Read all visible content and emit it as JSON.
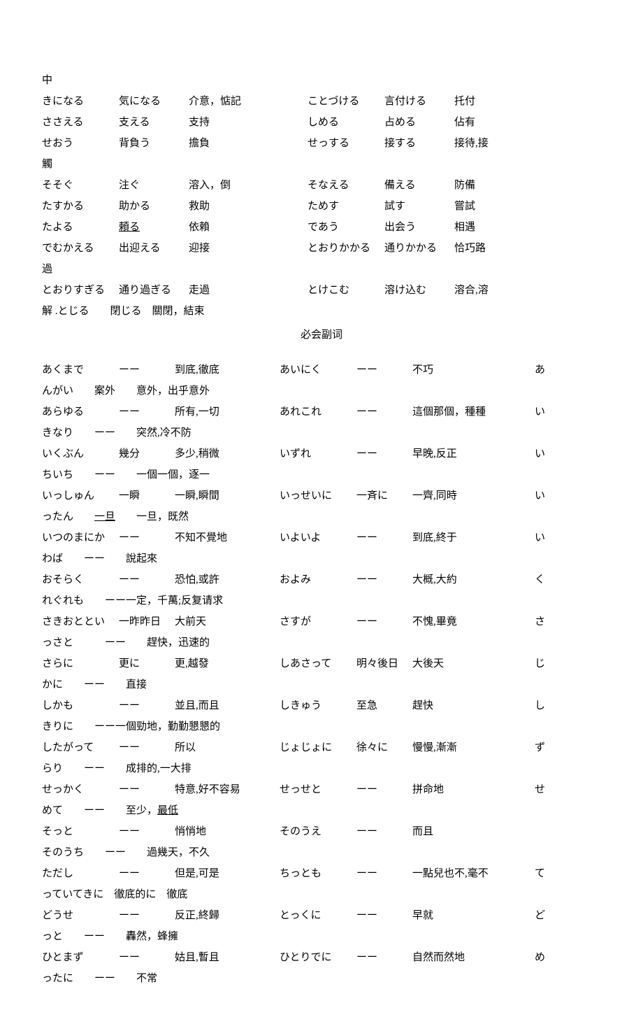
{
  "font_family": "SimSun / MS Mincho serif",
  "font_size_pt": 11,
  "text_color": "#000000",
  "background_color": "#ffffff",
  "line_height": 2.0,
  "verbs_orphan_top": "中",
  "verbs": [
    {
      "k": "きになる",
      "j": "気になる",
      "m": "介意，惦記",
      "k2": "ことづける",
      "j2": "言付ける",
      "m2": "托付"
    },
    {
      "k": "ささえる",
      "j": "支える",
      "m": "支持",
      "k2": "しめる",
      "j2": "占める",
      "m2": "佔有"
    },
    {
      "k": "せおう",
      "j": "背負う",
      "m": "擔負",
      "k2": "せっする",
      "j2": "接する",
      "m2": "接待,接"
    },
    {
      "cont": "觸"
    },
    {
      "k": "そそぐ",
      "j": "注ぐ",
      "m": "溶入，倒",
      "k2": "そなえる",
      "j2": "備える",
      "m2": "防備"
    },
    {
      "k": "たすかる",
      "j": "助かる",
      "m": "救助",
      "k2": "ためす",
      "j2": "試す",
      "m2": "嘗試"
    },
    {
      "k": "たよる",
      "j": "頼る",
      "m": "依賴",
      "j_under": true,
      "k2": "であう",
      "j2": "出会う",
      "m2": "相遇"
    },
    {
      "k": "でむかえる",
      "j": "出迎える",
      "m": "迎接",
      "k2": "とおりかかる",
      "j2": "通りかかる",
      "m2": "恰巧路"
    },
    {
      "cont": "過"
    },
    {
      "k": "とおりすぎる",
      "j": "通り過ぎる",
      "m": "走過",
      "k2": "とけこむ",
      "j2": "溶け込む",
      "m2": "溶合,溶"
    },
    {
      "cont": "解 .とじる　　閉じる　關閉，結束"
    }
  ],
  "section_title": "必会副词",
  "adverbs": [
    {
      "k": "あくまで",
      "d": "ーー",
      "m": "到底,徹底",
      "k2": "あいにく",
      "d2": "ーー",
      "m2": "不巧",
      "tail": "あ"
    },
    {
      "cont": "んがい　　案外　　意外，出乎意外"
    },
    {
      "k": "あらゆる",
      "d": "ーー",
      "m": "所有,一切",
      "k2": "あれこれ",
      "d2": "ーー",
      "m2": "這個那個，種種",
      "tail": "い"
    },
    {
      "cont": "きなり　　ーー　　突然,冷不防"
    },
    {
      "k": "いくぶん",
      "d": "幾分",
      "m": "多少,稍微",
      "k2": "いずれ",
      "d2": "ーー",
      "m2": "早晚,反正",
      "tail": "い"
    },
    {
      "cont": "ちいち　　ーー　　一個一個，逐一"
    },
    {
      "k": "いっしゅん",
      "d": "一瞬",
      "m": "一瞬,瞬間",
      "k2": "いっせいに",
      "d2": "一斉に",
      "m2": "一齊,同時",
      "tail": "い"
    },
    {
      "cont": "ったん　　一旦　　一旦，既然",
      "cont_under": "一旦"
    },
    {
      "k": "いつのまにか",
      "d": "ーー",
      "m": "不知不覺地",
      "k2": "いよいよ",
      "d2": "ーー",
      "m2": "到底,終于",
      "tail": "い"
    },
    {
      "cont": "わば　　ーー　　說起來"
    },
    {
      "k": "おそらく",
      "d": "ーー",
      "m": "恐怕,或許",
      "k2": "およみ",
      "d2": "ーー",
      "m2": "大概,大約",
      "tail": "く"
    },
    {
      "cont": "れぐれも　　ーー一定，千萬;反复请求"
    },
    {
      "k": "さきおととい",
      "d": "一昨昨日",
      "m": "大前天",
      "k2": "さすが",
      "d2": "ーー",
      "m2": "不愧,畢竟",
      "tail": "さ"
    },
    {
      "cont": "っさと　　　ーー　　趕快，迅速的"
    },
    {
      "k": "さらに",
      "d": "更に",
      "m": "更,越發",
      "k2": "しあさって",
      "d2": "明々後日",
      "m2": "大後天",
      "tail": "じ"
    },
    {
      "cont": "かに　　ーー　　直接"
    },
    {
      "k": "しかも",
      "d": "ーー",
      "m": "並且,而且",
      "k2": "しきゅう",
      "d2": "至急",
      "m2": "趕快",
      "tail": "し"
    },
    {
      "cont": "きりに　　ーー一個勁地，勤勤懇懇的"
    },
    {
      "k": "したがって",
      "d": "ーー",
      "m": "所以",
      "k2": "じょじょに",
      "d2": "徐々に",
      "m2": "慢慢,漸漸",
      "tail": "ず"
    },
    {
      "cont": "らり　　ーー　　成排的,一大排"
    },
    {
      "k": "せっかく",
      "d": "ーー",
      "m": "特意,好不容易",
      "k2": "せっせと",
      "d2": "ーー",
      "m2": "拼命地",
      "tail": "せ"
    },
    {
      "cont": "めて　　ーー　　至少，最低",
      "cont_under": "最低"
    },
    {
      "k": "そっと",
      "d": "ーー",
      "m": "悄悄地",
      "k2": "そのうえ",
      "d2": "ーー",
      "m2": "而且",
      "tail": ""
    },
    {
      "cont": "そのうち　　ーー　　過幾天，不久"
    },
    {
      "k": "ただし",
      "d": "ーー",
      "m": "但是,可是",
      "k2": "ちっとも",
      "d2": "ーー",
      "m2": "一點兒也不,毫不",
      "tail": "て"
    },
    {
      "cont": "っていてきに　徹底的に　徹底"
    },
    {
      "k": "どうせ",
      "d": "ーー",
      "m": "反正,終歸",
      "k2": "とっくに",
      "d2": "ーー",
      "m2": "早就",
      "tail": "ど"
    },
    {
      "cont": "っと　　ーー　　轟然，蜂擁"
    },
    {
      "k": "ひとまず",
      "d": "ーー",
      "m": "姑且,暫且",
      "k2": "ひとりでに",
      "d2": "ーー",
      "m2": "自然而然地",
      "tail": "め"
    },
    {
      "cont": "ったに　　ーー　　不常"
    }
  ]
}
